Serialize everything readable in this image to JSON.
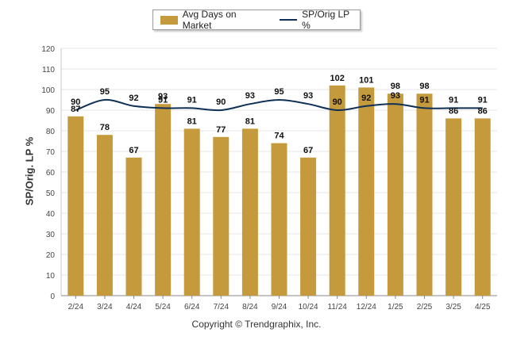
{
  "legend": {
    "bar_label": "Avg Days on Market",
    "line_label": "SP/Orig LP %"
  },
  "copyright": "Copyright © Trendgraphix, Inc.",
  "colors": {
    "bar": "#c49a3c",
    "line": "#0e2f56",
    "grid": "#e6e6e6"
  },
  "chart_data": {
    "type": "bar",
    "ylabel": "SP/Orig. LP %",
    "ylim": [
      0,
      120
    ],
    "yticks": [
      0,
      10,
      20,
      30,
      40,
      50,
      60,
      70,
      80,
      90,
      100,
      110,
      120
    ],
    "grid": true,
    "legend_position": "top-center",
    "categories": [
      "2/24",
      "3/24",
      "4/24",
      "5/24",
      "6/24",
      "7/24",
      "8/24",
      "9/24",
      "10/24",
      "11/24",
      "12/24",
      "1/25",
      "2/25",
      "3/25",
      "4/25"
    ],
    "series": [
      {
        "name": "Avg Days on Market",
        "type": "bar",
        "values": [
          87,
          78,
          67,
          93,
          81,
          77,
          81,
          74,
          67,
          102,
          101,
          98,
          98,
          86,
          86
        ]
      },
      {
        "name": "SP/Orig LP %",
        "type": "line",
        "values": [
          90,
          95,
          92,
          91,
          91,
          90,
          93,
          95,
          93,
          90,
          92,
          93,
          91,
          91,
          91
        ]
      }
    ]
  }
}
